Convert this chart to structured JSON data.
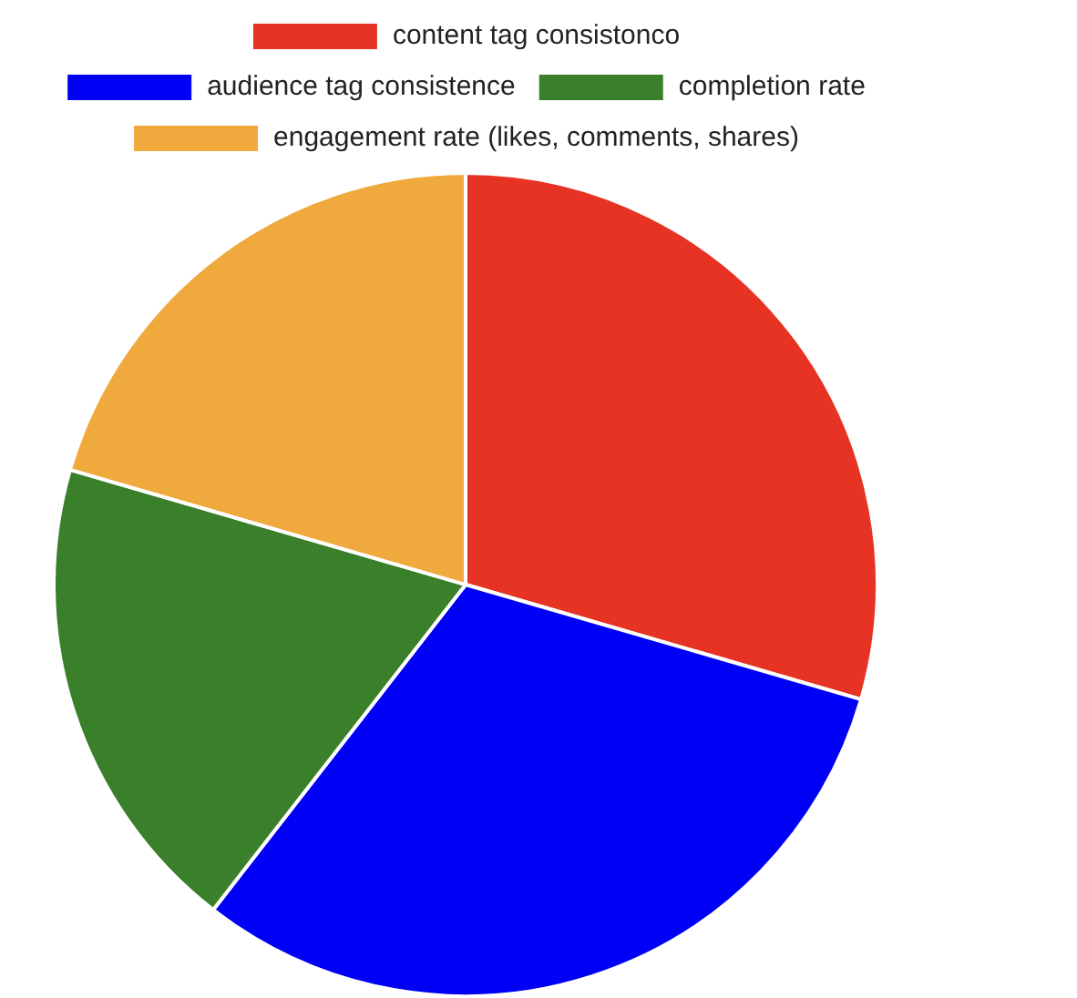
{
  "chart_data": {
    "type": "pie",
    "categories": [
      "content tag consistonco",
      "audience tag consistence",
      "completion rate",
      "engagement rate (likes, comments, shares)"
    ],
    "values": [
      29.5,
      31,
      19,
      20.5
    ],
    "colors": [
      "#e63323",
      "#0000f5",
      "#3a7f2a",
      "#f0a93c"
    ],
    "legend": "top"
  }
}
